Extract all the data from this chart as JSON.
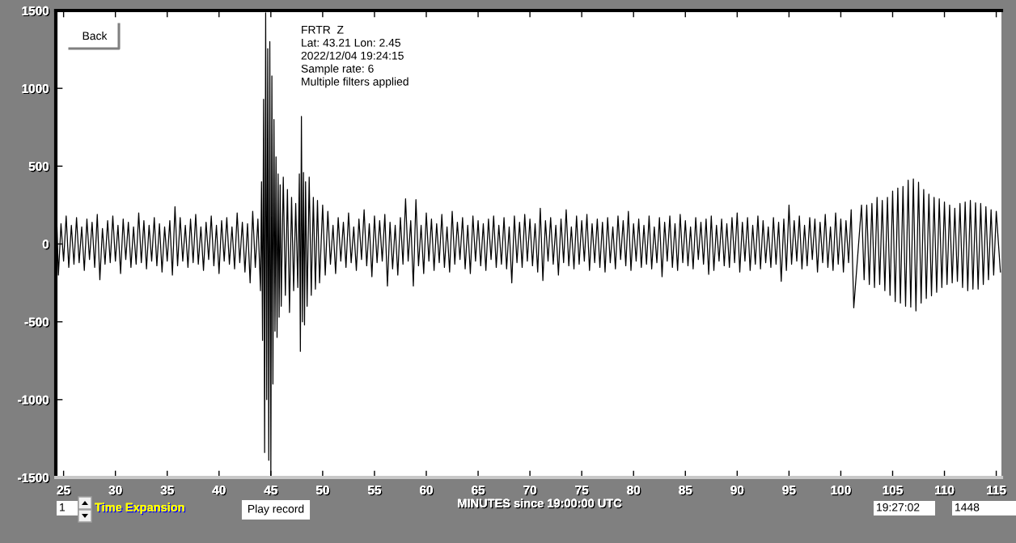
{
  "chart_data": {
    "type": "line",
    "title": "FRTR  Z",
    "xlabel": "MINUTES since 19:00:00 UTC",
    "annotations": [
      "Lat: 43.21 Lon: 2.45",
      "2022/12/04 19:24:15",
      "Sample rate: 6",
      "Multiple filters applied",
      "Back",
      "1",
      "Time Expansion",
      "Play record",
      "19:27:02",
      "1448"
    ],
    "color": "#000000",
    "x": [
      24.3,
      24.5,
      24.75,
      25.0,
      25.25,
      25.5,
      25.75,
      26.0,
      26.25,
      26.5,
      26.75,
      27.0,
      27.25,
      27.5,
      27.75,
      28.0,
      28.25,
      28.5,
      28.75,
      29.0,
      29.25,
      29.5,
      29.75,
      30.0,
      30.25,
      30.5,
      30.75,
      31.0,
      31.25,
      31.5,
      31.75,
      32.0,
      32.25,
      32.5,
      32.75,
      33.0,
      33.25,
      33.5,
      33.75,
      34.0,
      34.25,
      34.5,
      34.75,
      35.0,
      35.25,
      35.5,
      35.75,
      36.0,
      36.25,
      36.5,
      36.75,
      37.0,
      37.25,
      37.5,
      37.75,
      38.0,
      38.25,
      38.5,
      38.75,
      39.0,
      39.25,
      39.5,
      39.75,
      40.0,
      40.25,
      40.5,
      40.75,
      41.0,
      41.25,
      41.5,
      41.75,
      42.0,
      42.25,
      42.5,
      42.75,
      43.0,
      43.25,
      43.5,
      43.75,
      44.0,
      44.1,
      44.2,
      44.3,
      44.4,
      44.5,
      44.6,
      44.7,
      44.8,
      44.9,
      45.0,
      45.1,
      45.2,
      45.3,
      45.4,
      45.5,
      45.6,
      45.7,
      45.8,
      45.9,
      46.0,
      46.2,
      46.4,
      46.6,
      46.8,
      47.0,
      47.2,
      47.4,
      47.6,
      47.75,
      47.85,
      47.95,
      48.05,
      48.15,
      48.25,
      48.35,
      48.5,
      48.7,
      48.9,
      49.1,
      49.3,
      49.5,
      49.7,
      50.0,
      50.25,
      50.5,
      50.75,
      51.0,
      51.25,
      51.5,
      51.75,
      52.0,
      52.25,
      52.5,
      52.75,
      53.0,
      53.25,
      53.5,
      53.75,
      54.0,
      54.25,
      54.5,
      54.75,
      55.0,
      55.25,
      55.5,
      55.75,
      56.0,
      56.25,
      56.5,
      56.75,
      57.0,
      57.25,
      57.5,
      57.75,
      58.0,
      58.25,
      58.5,
      58.75,
      59.0,
      59.25,
      59.5,
      59.75,
      60.0,
      60.25,
      60.5,
      60.75,
      61.0,
      61.25,
      61.5,
      61.75,
      62.0,
      62.25,
      62.5,
      62.75,
      63.0,
      63.25,
      63.5,
      63.75,
      64.0,
      64.25,
      64.5,
      64.75,
      65.0,
      65.25,
      65.5,
      65.75,
      66.0,
      66.25,
      66.5,
      66.75,
      67.0,
      67.25,
      67.5,
      67.75,
      68.0,
      68.25,
      68.5,
      68.75,
      69.0,
      69.25,
      69.5,
      69.75,
      70.0,
      70.25,
      70.5,
      70.75,
      71.0,
      71.25,
      71.5,
      71.75,
      72.0,
      72.25,
      72.5,
      72.75,
      73.0,
      73.25,
      73.5,
      73.75,
      74.0,
      74.25,
      74.5,
      74.75,
      75.0,
      75.25,
      75.5,
      75.75,
      76.0,
      76.25,
      76.5,
      76.75,
      77.0,
      77.25,
      77.5,
      77.75,
      78.0,
      78.25,
      78.5,
      78.75,
      79.0,
      79.25,
      79.5,
      79.75,
      80.0,
      80.25,
      80.5,
      80.75,
      81.0,
      81.25,
      81.5,
      81.75,
      82.0,
      82.25,
      82.5,
      82.75,
      83.0,
      83.25,
      83.5,
      83.75,
      84.0,
      84.25,
      84.5,
      84.75,
      85.0,
      85.25,
      85.5,
      85.75,
      86.0,
      86.25,
      86.5,
      86.75,
      87.0,
      87.25,
      87.5,
      87.75,
      88.0,
      88.25,
      88.5,
      88.75,
      89.0,
      89.25,
      89.5,
      89.75,
      90.0,
      90.25,
      90.5,
      90.75,
      91.0,
      91.25,
      91.5,
      91.75,
      92.0,
      92.25,
      92.5,
      92.75,
      93.0,
      93.25,
      93.5,
      93.75,
      94.0,
      94.25,
      94.5,
      94.75,
      95.0,
      95.25,
      95.5,
      95.75,
      96.0,
      96.25,
      96.5,
      96.75,
      97.0,
      97.25,
      97.5,
      97.75,
      98.0,
      98.25,
      98.5,
      98.75,
      99.0,
      99.25,
      99.5,
      99.75,
      100.0,
      100.25,
      100.5,
      100.75,
      101.0,
      101.25,
      102.0,
      102.25,
      102.5,
      102.75,
      103.0,
      103.25,
      103.5,
      103.75,
      104.0,
      104.25,
      104.5,
      104.75,
      105.0,
      105.25,
      105.5,
      105.75,
      106.0,
      106.25,
      106.5,
      106.75,
      107.0,
      107.25,
      107.5,
      107.75,
      108.0,
      108.25,
      108.5,
      108.75,
      109.0,
      109.25,
      109.5,
      109.75,
      110.0,
      110.25,
      110.5,
      110.75,
      111.0,
      111.25,
      111.5,
      111.75,
      112.0,
      112.25,
      112.5,
      112.75,
      113.0,
      113.25,
      113.5,
      113.75,
      114.0,
      114.25,
      114.5,
      114.75,
      115.0,
      115.4
    ],
    "values": [
      250,
      -200,
      130,
      -110,
      180,
      -150,
      120,
      -130,
      170,
      -120,
      110,
      -170,
      160,
      -100,
      140,
      -150,
      190,
      -230,
      100,
      -130,
      150,
      -120,
      180,
      -110,
      120,
      -190,
      160,
      -100,
      140,
      -150,
      110,
      -130,
      200,
      -120,
      150,
      -160,
      120,
      -110,
      170,
      -140,
      130,
      -180,
      110,
      -110,
      150,
      -200,
      240,
      -140,
      170,
      -110,
      120,
      -150,
      160,
      -120,
      190,
      -130,
      110,
      -170,
      140,
      -100,
      180,
      -140,
      120,
      -190,
      150,
      -110,
      170,
      -130,
      110,
      -160,
      200,
      -120,
      140,
      -180,
      130,
      -250,
      210,
      -150,
      160,
      -300,
      400,
      -620,
      930,
      -1340,
      1485,
      -1000,
      1255,
      -1390,
      1300,
      -1490,
      1080,
      -900,
      800,
      -560,
      560,
      -600,
      450,
      -470,
      380,
      -400,
      430,
      -330,
      350,
      -440,
      300,
      -300,
      260,
      -280,
      450,
      -690,
      820,
      -500,
      460,
      -520,
      400,
      -400,
      430,
      -330,
      300,
      -290,
      280,
      -250,
      250,
      -200,
      210,
      -130,
      120,
      -190,
      170,
      -110,
      140,
      -150,
      200,
      -120,
      110,
      -170,
      160,
      -100,
      220,
      -140,
      130,
      -210,
      180,
      -120,
      150,
      -110,
      190,
      -270,
      140,
      -160,
      120,
      -200,
      170,
      -130,
      290,
      -110,
      150,
      -270,
      285,
      -140,
      120,
      -190,
      200,
      -110,
      160,
      -170,
      130,
      -120,
      190,
      -150,
      110,
      -180,
      210,
      -130,
      140,
      -100,
      170,
      -160,
      120,
      -190,
      180,
      -110,
      150,
      -140,
      130,
      -170,
      160,
      -100,
      180,
      -150,
      120,
      -130,
      170,
      -160,
      110,
      -250,
      180,
      -120,
      140,
      -150,
      190,
      -110,
      160,
      -140,
      130,
      -180,
      230,
      -235,
      150,
      -110,
      170,
      -130,
      120,
      -200,
      160,
      -120,
      220,
      -140,
      110,
      -160,
      180,
      -130,
      150,
      -110,
      190,
      -170,
      130,
      -120,
      160,
      -150,
      140,
      -180,
      170,
      -120,
      110,
      -160,
      180,
      -100,
      150,
      -140,
      210,
      -170,
      130,
      -110,
      160,
      -150,
      120,
      -130,
      180,
      -160,
      110,
      -120,
      170,
      -210,
      140,
      -110,
      180,
      -150,
      130,
      -170,
      190,
      -120,
      150,
      -140,
      110,
      -160,
      170,
      -100,
      140,
      -130,
      160,
      -195,
      180,
      -170,
      120,
      -110,
      160,
      -140,
      130,
      -150,
      170,
      -120,
      200,
      -180,
      140,
      -110,
      170,
      -170,
      120,
      -130,
      180,
      -160,
      150,
      -120,
      110,
      -150,
      170,
      -130,
      140,
      -240,
      160,
      -170,
      250,
      -130,
      150,
      -110,
      180,
      -160,
      120,
      -140,
      170,
      -100,
      160,
      -180,
      140,
      -120,
      190,
      -150,
      110,
      -170,
      200,
      -130,
      160,
      -180,
      150,
      -120,
      220,
      -410,
      250,
      -230,
      250,
      -260,
      260,
      -280,
      300,
      -260,
      280,
      -300,
      300,
      -330,
      340,
      -370,
      360,
      -380,
      370,
      -400,
      410,
      -405,
      418,
      -430,
      397,
      -380,
      350,
      -350,
      320,
      -333,
      300,
      -310,
      290,
      -280,
      270,
      -260,
      250,
      -250,
      230,
      -240,
      260,
      -280,
      270,
      -300,
      280,
      -290,
      265,
      -290,
      260,
      -260,
      240,
      -230,
      220,
      -200,
      210,
      -180
    ],
    "xlim": [
      24.25,
      115.5
    ],
    "ylim": [
      -1500,
      1500
    ],
    "xticks": [
      25,
      30,
      35,
      40,
      45,
      50,
      55,
      60,
      65,
      70,
      75,
      80,
      85,
      90,
      95,
      100,
      105,
      110,
      115
    ],
    "yticks": [
      -1500,
      -1000,
      -500,
      0,
      500,
      1000,
      1500
    ]
  }
}
